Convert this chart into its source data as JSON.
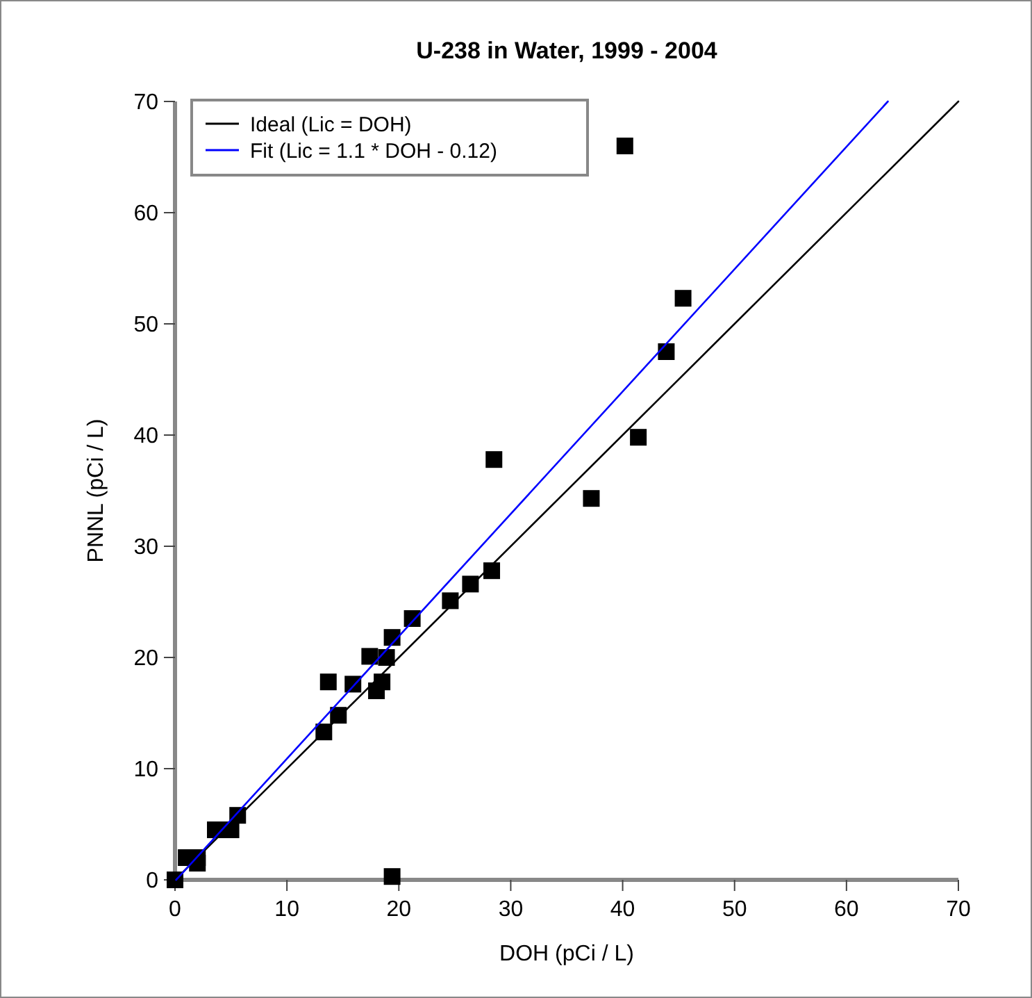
{
  "chart_data": {
    "type": "scatter",
    "title": "U-238 in Water, 1999 - 2004",
    "xlabel": "DOH (pCi / L)",
    "ylabel": "PNNL (pCi / L)",
    "xlim": [
      0,
      70
    ],
    "ylim": [
      0,
      70
    ],
    "xticks": [
      0,
      10,
      20,
      30,
      40,
      50,
      60,
      70
    ],
    "yticks": [
      0,
      10,
      20,
      30,
      40,
      50,
      60,
      70
    ],
    "grid": false,
    "legend": "top left",
    "series": [
      {
        "color": "#000000",
        "marker": "square",
        "x": [
          0,
          1,
          2,
          2,
          3.6,
          5,
          5.6,
          13.3,
          14.6,
          13.7,
          15.9,
          18,
          18.5,
          17.4,
          18.9,
          19.4,
          21.2,
          24.6,
          26.4,
          28.3,
          19.4,
          40.2,
          45.4,
          43.9,
          41.4,
          28.5,
          37.2
        ],
        "values": [
          0,
          2,
          2,
          1.5,
          4.5,
          4.5,
          5.8,
          13.3,
          14.8,
          17.8,
          17.6,
          17,
          17.8,
          20.1,
          20,
          21.8,
          23.5,
          25.1,
          26.6,
          27.8,
          0.3,
          66,
          52.3,
          47.5,
          39.8,
          37.8,
          34.3
        ]
      },
      {
        "type": "line",
        "name": "Ideal (Lic = DOH)",
        "color": "#000000",
        "x": [
          0,
          70
        ],
        "values": [
          0,
          70
        ]
      },
      {
        "type": "line",
        "name": "Fit (Lic = 1.1 * DOH - 0.12)",
        "color": "#0000ff",
        "x": [
          0.1,
          63.7
        ],
        "values": [
          0,
          70
        ]
      }
    ]
  }
}
